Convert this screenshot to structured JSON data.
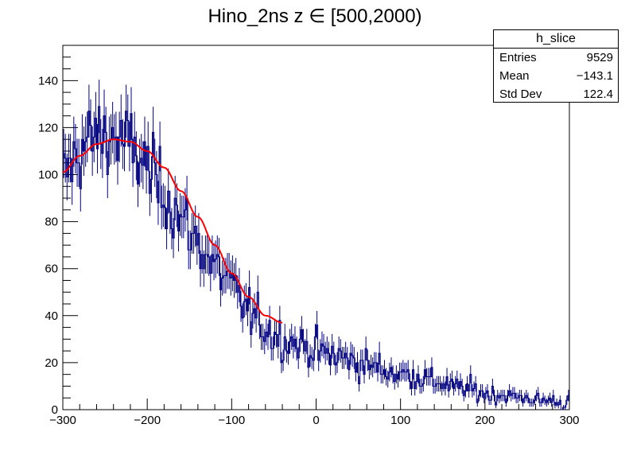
{
  "chart_data": {
    "type": "histogram",
    "title": "Hino_2ns z  ∈ [500,2000)",
    "xlabel": "",
    "ylabel": "",
    "xlim": [
      -300,
      300
    ],
    "ylim": [
      0,
      155
    ],
    "x_ticks": [
      "−300",
      "−200",
      "−100",
      "0",
      "100",
      "200",
      "300"
    ],
    "y_ticks": [
      "0",
      "20",
      "40",
      "60",
      "80",
      "100",
      "120",
      "140"
    ],
    "grid": false,
    "bin_width": 2,
    "envelope_x": [
      -300,
      -290,
      -280,
      -270,
      -260,
      -250,
      -240,
      -230,
      -220,
      -210,
      -200,
      -190,
      -180,
      -170,
      -160,
      -150,
      -140,
      -130,
      -120,
      -110,
      -100,
      -90,
      -80,
      -70,
      -60,
      -50,
      -40,
      -30,
      -20,
      -10,
      0,
      10,
      20,
      30,
      40,
      50,
      60,
      70,
      80,
      90,
      100,
      110,
      120,
      130,
      140,
      150,
      160,
      170,
      180,
      190,
      200,
      210,
      220,
      230,
      240,
      250,
      260,
      270,
      280,
      290,
      300
    ],
    "envelope_y": [
      98,
      104,
      110,
      114,
      116,
      117,
      116,
      114,
      112,
      108,
      103,
      98,
      93,
      87,
      81,
      76,
      71,
      66,
      61,
      57,
      52,
      47,
      42,
      38,
      35,
      32,
      30,
      29,
      28,
      27,
      25,
      24,
      23,
      22,
      21,
      20,
      19,
      18,
      17,
      16,
      15,
      15,
      14,
      13,
      12,
      11,
      10,
      9,
      9,
      8,
      7,
      7,
      6,
      6,
      5,
      5,
      4,
      4,
      4,
      3,
      3
    ],
    "fit": {
      "name": "gaus",
      "color": "#ff0000",
      "x_range": [
        -300,
        -40
      ],
      "x": [
        -300,
        -280,
        -260,
        -240,
        -220,
        -200,
        -180,
        -160,
        -140,
        -120,
        -100,
        -80,
        -60,
        -40
      ],
      "y": [
        101,
        108,
        113,
        115,
        114,
        110,
        103,
        93,
        82,
        70,
        58,
        48,
        40,
        37
      ]
    },
    "histogram_color": "#000080",
    "stats": {
      "name": "h_slice",
      "entries_label": "Entries",
      "entries": "9529",
      "mean_label": "Mean",
      "mean": "−143.1",
      "stddev_label": "Std Dev",
      "stddev": "122.4"
    }
  }
}
